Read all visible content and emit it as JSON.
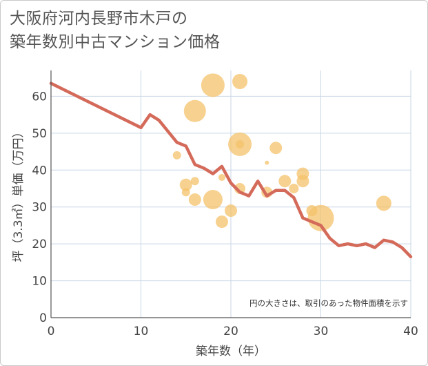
{
  "title": {
    "line1": "大阪府河内長野市木戸の",
    "line2": "築年数別中古マンション価格"
  },
  "colors": {
    "line": "#d46a5a",
    "bubble": "#f4c16a",
    "grid": "#c8d6e5",
    "plot_bg": "#ffffff"
  },
  "chart_data": {
    "type": "scatter",
    "xlabel": "築年数（年）",
    "ylabel": "坪（3.3㎡）単価（万円）",
    "xlim": [
      0,
      40
    ],
    "ylim": [
      0,
      67
    ],
    "xticks": [
      0,
      10,
      20,
      30,
      40
    ],
    "yticks": [
      0,
      10,
      20,
      30,
      40,
      50,
      60
    ],
    "grid": true,
    "note": "円の大きさは、取引のあった物件面積を示す",
    "line": {
      "x": [
        0,
        10,
        11,
        12,
        13,
        14,
        15,
        16,
        17,
        18,
        19,
        20,
        21,
        22,
        23,
        24,
        25,
        26,
        27,
        28,
        29,
        30,
        31,
        32,
        33,
        34,
        35,
        36,
        37,
        38,
        39,
        40
      ],
      "y": [
        63.5,
        51.5,
        55,
        53.5,
        50.5,
        47.5,
        46.5,
        41.5,
        40.5,
        39,
        41,
        36.5,
        34,
        33,
        37,
        33,
        34.5,
        34.5,
        32.5,
        27,
        26,
        25,
        21.5,
        19.5,
        20,
        19.5,
        20,
        19,
        21,
        20.5,
        19,
        16.5
      ]
    },
    "bubbles": [
      {
        "x": 14,
        "y": 44,
        "size": 6
      },
      {
        "x": 15,
        "y": 36,
        "size": 9
      },
      {
        "x": 15,
        "y": 34,
        "size": 6
      },
      {
        "x": 16,
        "y": 56,
        "size": 16
      },
      {
        "x": 16,
        "y": 37,
        "size": 6
      },
      {
        "x": 16,
        "y": 32,
        "size": 9
      },
      {
        "x": 18,
        "y": 63,
        "size": 17
      },
      {
        "x": 18,
        "y": 32,
        "size": 14
      },
      {
        "x": 19,
        "y": 38,
        "size": 5
      },
      {
        "x": 19,
        "y": 26,
        "size": 9
      },
      {
        "x": 20,
        "y": 29,
        "size": 9
      },
      {
        "x": 21,
        "y": 64,
        "size": 11
      },
      {
        "x": 21,
        "y": 47,
        "size": 17
      },
      {
        "x": 21,
        "y": 47,
        "size": 6
      },
      {
        "x": 21,
        "y": 35,
        "size": 8
      },
      {
        "x": 24,
        "y": 42,
        "size": 3
      },
      {
        "x": 24,
        "y": 34,
        "size": 8
      },
      {
        "x": 25,
        "y": 46,
        "size": 9
      },
      {
        "x": 26,
        "y": 37,
        "size": 9
      },
      {
        "x": 27,
        "y": 35,
        "size": 7
      },
      {
        "x": 28,
        "y": 39,
        "size": 9
      },
      {
        "x": 28,
        "y": 37,
        "size": 9
      },
      {
        "x": 29,
        "y": 29,
        "size": 8
      },
      {
        "x": 30,
        "y": 27,
        "size": 19
      },
      {
        "x": 37,
        "y": 31,
        "size": 11
      }
    ]
  }
}
